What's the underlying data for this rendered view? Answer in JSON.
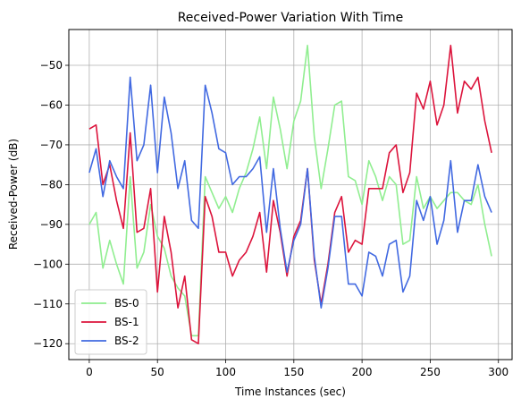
{
  "chart_data": {
    "type": "line",
    "title": "Received-Power Variation With Time",
    "xlabel": "Time Instances (sec)",
    "ylabel": "Received-Power (dB)",
    "xlim": [
      -15,
      310
    ],
    "ylim": [
      -124,
      -41
    ],
    "xticks": [
      0,
      50,
      100,
      150,
      200,
      250,
      300
    ],
    "yticks": [
      -120,
      -110,
      -100,
      -90,
      -80,
      -70,
      -60,
      -50
    ],
    "grid": true,
    "legend_position": "bottom-left",
    "x": [
      0,
      5,
      10,
      15,
      20,
      25,
      30,
      35,
      40,
      45,
      50,
      55,
      60,
      65,
      70,
      75,
      80,
      85,
      90,
      95,
      100,
      105,
      110,
      115,
      120,
      125,
      130,
      135,
      140,
      145,
      150,
      155,
      160,
      165,
      170,
      175,
      180,
      185,
      190,
      195,
      200,
      205,
      210,
      215,
      220,
      225,
      230,
      235,
      240,
      245,
      250,
      255,
      260,
      265,
      270,
      275,
      280,
      285,
      290,
      295
    ],
    "series": [
      {
        "name": "BS-0",
        "color": "#90ee90",
        "values": [
          -90,
          -87,
          -101,
          -94,
          -100,
          -105,
          -78,
          -101,
          -97,
          -85,
          -93,
          -96,
          -103,
          -106,
          -108,
          -118,
          -118,
          -78,
          -82,
          -86,
          -83,
          -87,
          -81,
          -77,
          -71,
          -63,
          -76,
          -58,
          -66,
          -76,
          -64,
          -59,
          -45,
          -68,
          -81,
          -71,
          -60,
          -59,
          -78,
          -79,
          -85,
          -74,
          -78,
          -84,
          -78,
          -80,
          -95,
          -94,
          -78,
          -86,
          -83,
          -86,
          -84,
          -82,
          -82,
          -84,
          -85,
          -80,
          -90,
          -98
        ]
      },
      {
        "name": "BS-1",
        "color": "#dc143c",
        "values": [
          -66,
          -65,
          -80,
          -75,
          -84,
          -91,
          -67,
          -92,
          -91,
          -81,
          -107,
          -88,
          -97,
          -111,
          -103,
          -119,
          -120,
          -83,
          -88,
          -97,
          -97,
          -103,
          -99,
          -97,
          -93,
          -87,
          -102,
          -84,
          -92,
          -103,
          -93,
          -89,
          -76,
          -99,
          -110,
          -100,
          -87,
          -83,
          -97,
          -94,
          -95,
          -81,
          -81,
          -81,
          -72,
          -70,
          -82,
          -77,
          -57,
          -61,
          -54,
          -65,
          -60,
          -45,
          -62,
          -54,
          -56,
          -53,
          -64,
          -72
        ]
      },
      {
        "name": "BS-2",
        "color": "#4169e1",
        "values": [
          -77,
          -71,
          -83,
          -74,
          -78,
          -81,
          -53,
          -74,
          -70,
          -55,
          -77,
          -58,
          -67,
          -81,
          -74,
          -89,
          -91,
          -55,
          -62,
          -71,
          -72,
          -80,
          -78,
          -78,
          -76,
          -73,
          -92,
          -76,
          -91,
          -102,
          -94,
          -90,
          -76,
          -98,
          -111,
          -101,
          -88,
          -88,
          -105,
          -105,
          -108,
          -97,
          -98,
          -103,
          -95,
          -94,
          -107,
          -103,
          -84,
          -89,
          -83,
          -95,
          -89,
          -74,
          -92,
          -84,
          -84,
          -75,
          -83,
          -87
        ]
      }
    ]
  }
}
